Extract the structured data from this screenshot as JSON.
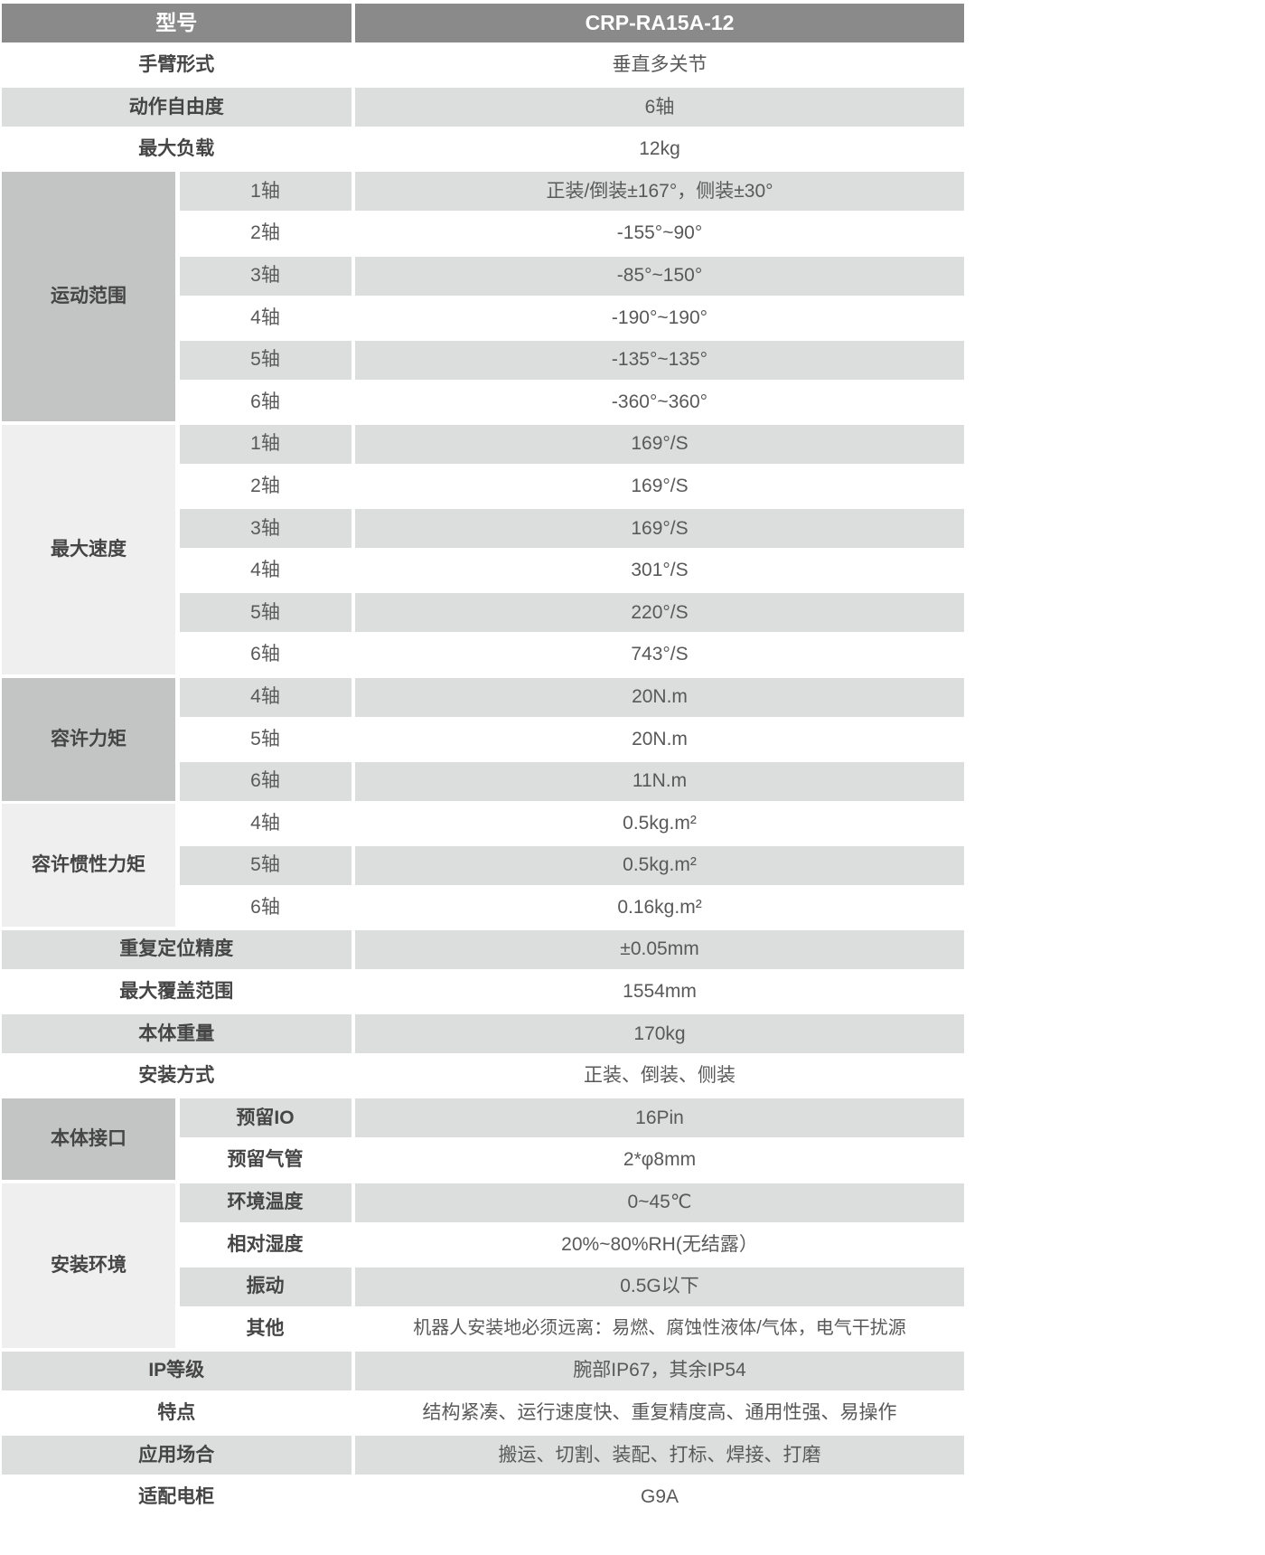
{
  "colors": {
    "header_bg": "#8a8a8a",
    "header_text": "#ffffff",
    "category_dark": "#c3c4c4",
    "category_light": "#efefef",
    "row_shade": "#dcdddd",
    "label_text": "#454545",
    "value_text": "#595959"
  },
  "table": {
    "header": {
      "label": "型号",
      "value": "CRP-RA15A-12"
    },
    "rows": {
      "arm_form": {
        "label": "手臂形式",
        "value": "垂直多关节"
      },
      "dof": {
        "label": "动作自由度",
        "value": "6轴"
      },
      "max_payload": {
        "label": "最大负载",
        "value": "12kg"
      },
      "repeatability": {
        "label": "重复定位精度",
        "value": "±0.05mm"
      },
      "max_reach": {
        "label": "最大覆盖范围",
        "value": "1554mm"
      },
      "body_weight": {
        "label": "本体重量",
        "value": "170kg"
      },
      "mounting": {
        "label": "安装方式",
        "value": "正装、倒装、侧装"
      },
      "ip_rating": {
        "label": "IP等级",
        "value": "腕部IP67，其余IP54"
      },
      "features": {
        "label": "特点",
        "value": "结构紧凑、运行速度快、重复精度高、通用性强、易操作"
      },
      "applications": {
        "label": "应用场合",
        "value": "搬运、切割、装配、打标、焊接、打磨"
      },
      "cabinet": {
        "label": "适配电柜",
        "value": "G9A"
      }
    },
    "groups": {
      "motion_range": {
        "label": "运动范围",
        "rows": [
          {
            "sub": "1轴",
            "value": "正装/倒装±167°，侧装±30°"
          },
          {
            "sub": "2轴",
            "value": "-155°~90°"
          },
          {
            "sub": "3轴",
            "value": "-85°~150°"
          },
          {
            "sub": "4轴",
            "value": "-190°~190°"
          },
          {
            "sub": "5轴",
            "value": "-135°~135°"
          },
          {
            "sub": "6轴",
            "value": "-360°~360°"
          }
        ]
      },
      "max_speed": {
        "label": "最大速度",
        "rows": [
          {
            "sub": "1轴",
            "value": "169°/S"
          },
          {
            "sub": "2轴",
            "value": "169°/S"
          },
          {
            "sub": "3轴",
            "value": "169°/S"
          },
          {
            "sub": "4轴",
            "value": "301°/S"
          },
          {
            "sub": "5轴",
            "value": "220°/S"
          },
          {
            "sub": "6轴",
            "value": "743°/S"
          }
        ]
      },
      "torque": {
        "label": "容许力矩",
        "rows": [
          {
            "sub": "4轴",
            "value": "20N.m"
          },
          {
            "sub": "5轴",
            "value": "20N.m"
          },
          {
            "sub": "6轴",
            "value": "11N.m"
          }
        ]
      },
      "inertia": {
        "label": "容许惯性力矩",
        "rows": [
          {
            "sub": "4轴",
            "value": "0.5kg.m²"
          },
          {
            "sub": "5轴",
            "value": "0.5kg.m²"
          },
          {
            "sub": "6轴",
            "value": "0.16kg.m²"
          }
        ]
      },
      "interface": {
        "label": "本体接口",
        "rows": [
          {
            "sub": "预留IO",
            "value": "16Pin"
          },
          {
            "sub": "预留气管",
            "value": "2*φ8mm"
          }
        ]
      },
      "environment": {
        "label": "安装环境",
        "rows": [
          {
            "sub": "环境温度",
            "value": "0~45℃"
          },
          {
            "sub": "相对湿度",
            "value": "20%~80%RH(无结露）"
          },
          {
            "sub": "振动",
            "value": "0.5G以下"
          },
          {
            "sub": "其他",
            "value": "机器人安装地必须远离：易燃、腐蚀性液体/气体，电气干扰源"
          }
        ]
      }
    }
  }
}
